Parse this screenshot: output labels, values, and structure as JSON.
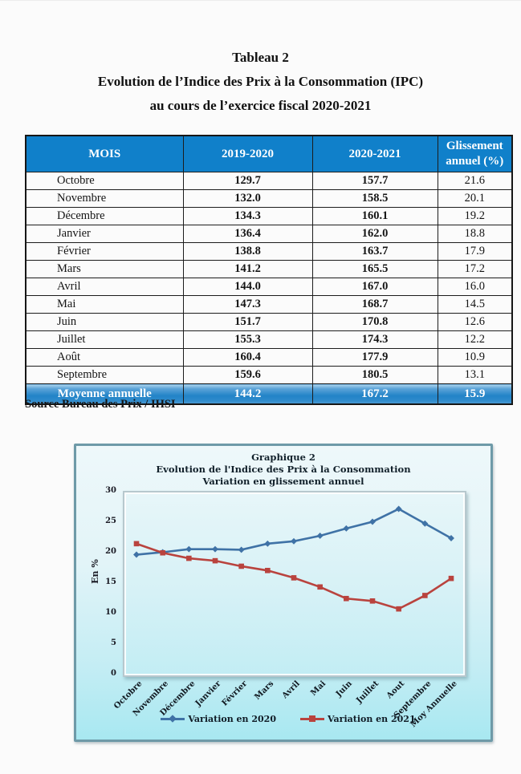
{
  "page": {
    "title_line1": "Tableau 2",
    "title_line2": "Evolution de l’Indice des Prix à la Consommation (IPC)",
    "title_line3": "au cours de l’exercice fiscal 2020-2021",
    "source": "Source Bureau des Prix / IHSI"
  },
  "table": {
    "headers": [
      "MOIS",
      "2019-2020",
      "2020-2021",
      "Glissement annuel (%)"
    ],
    "rows": [
      [
        "Octobre",
        "129.7",
        "157.7",
        "21.6"
      ],
      [
        "Novembre",
        "132.0",
        "158.5",
        "20.1"
      ],
      [
        "Décembre",
        "134.3",
        "160.1",
        "19.2"
      ],
      [
        "Janvier",
        "136.4",
        "162.0",
        "18.8"
      ],
      [
        "Février",
        "138.8",
        "163.7",
        "17.9"
      ],
      [
        "Mars",
        "141.2",
        "165.5",
        "17.2"
      ],
      [
        "Avril",
        "144.0",
        "167.0",
        "16.0"
      ],
      [
        "Mai",
        "147.3",
        "168.7",
        "14.5"
      ],
      [
        "Juin",
        "151.7",
        "170.8",
        "12.6"
      ],
      [
        "Juillet",
        "155.3",
        "174.3",
        "12.2"
      ],
      [
        "Août",
        "160.4",
        "177.9",
        "10.9"
      ],
      [
        "Septembre",
        "159.6",
        "180.5",
        "13.1"
      ]
    ],
    "footer": [
      "Moyenne annuelle",
      "144.2",
      "167.2",
      "15.9"
    ],
    "colors": {
      "header_bg": "#1080ca",
      "header_text": "#ffffff",
      "footer_bg": "#2283c7"
    }
  },
  "chart": {
    "title_line1": "Graphique 2",
    "title_line2": "Evolution de l'Indice des Prix à la Consommation",
    "title_line3": "Variation en glissement annuel"
  },
  "chart_data": {
    "type": "line",
    "title": "Graphique 2 - Evolution de l'Indice des Prix à la Consommation - Variation en glissement annuel",
    "ylabel": "En %",
    "xlabel": "",
    "ylim": [
      0,
      30
    ],
    "yticks": [
      0,
      5,
      10,
      15,
      20,
      25,
      30
    ],
    "grid": false,
    "legend_position": "bottom",
    "categories": [
      "Octobre",
      "Novembre",
      "Décembre",
      "Janvier",
      "Février",
      "Mars",
      "Avril",
      "Mai",
      "Juin",
      "Juillet",
      "Aout",
      "Septembre",
      "Moy Annuelle"
    ],
    "series": [
      {
        "name": "Variation en 2020",
        "color": "#3f72a6",
        "marker": "diamond",
        "values": [
          19.8,
          20.2,
          20.7,
          20.7,
          20.6,
          21.6,
          22.0,
          22.9,
          24.1,
          25.2,
          27.3,
          24.9,
          22.5
        ]
      },
      {
        "name": "Variation en 2021",
        "color": "#b9433e",
        "marker": "square",
        "values": [
          21.6,
          20.1,
          19.2,
          18.8,
          17.9,
          17.2,
          16.0,
          14.5,
          12.6,
          12.2,
          10.9,
          13.1,
          15.9
        ]
      }
    ]
  }
}
